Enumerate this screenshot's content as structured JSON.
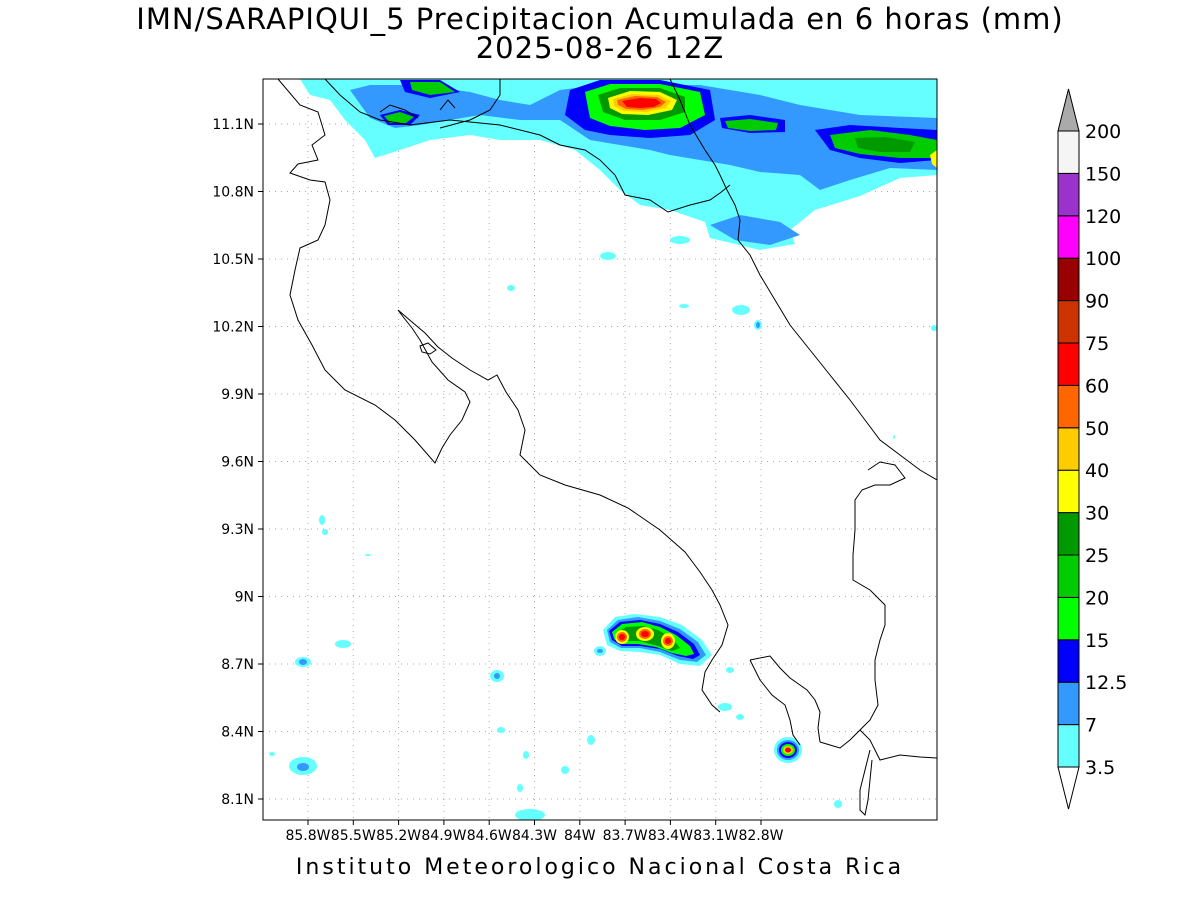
{
  "title": {
    "line1": "IMN/SARAPIQUI_5 Precipitacion Acumulada en 6 horas (mm)",
    "line2": "2025-08-26 12Z"
  },
  "footer": "Instituto Meteorologico Nacional Costa Rica",
  "map": {
    "lat_labels": [
      "11.1N",
      "10.8N",
      "10.5N",
      "10.2N",
      "9.9N",
      "9.6N",
      "9.3N",
      "9N",
      "8.7N",
      "8.4N",
      "8.1N"
    ],
    "lon_labels": [
      "85.8W",
      "85.5W",
      "85.2W",
      "84.9W",
      "84.6W",
      "84.3W",
      "84W",
      "83.7W",
      "83.4W",
      "83.1W",
      "82.8W"
    ]
  },
  "legend": {
    "levels": [
      {
        "label": "3.5",
        "color": "#66ffff"
      },
      {
        "label": "7",
        "color": "#3399ff"
      },
      {
        "label": "12.5",
        "color": "#0000ff"
      },
      {
        "label": "15",
        "color": "#00ff00"
      },
      {
        "label": "20",
        "color": "#00cc00"
      },
      {
        "label": "25",
        "color": "#009900"
      },
      {
        "label": "30",
        "color": "#ffff00"
      },
      {
        "label": "40",
        "color": "#ffcc00"
      },
      {
        "label": "50",
        "color": "#ff6600"
      },
      {
        "label": "60",
        "color": "#ff0000"
      },
      {
        "label": "75",
        "color": "#cc3300"
      },
      {
        "label": "90",
        "color": "#990000"
      },
      {
        "label": "100",
        "color": "#ff00ff"
      },
      {
        "label": "120",
        "color": "#9933cc"
      },
      {
        "label": "150",
        "color": "#f5f5f5"
      },
      {
        "label": "200",
        "color": "#aaaaaa"
      }
    ]
  }
}
